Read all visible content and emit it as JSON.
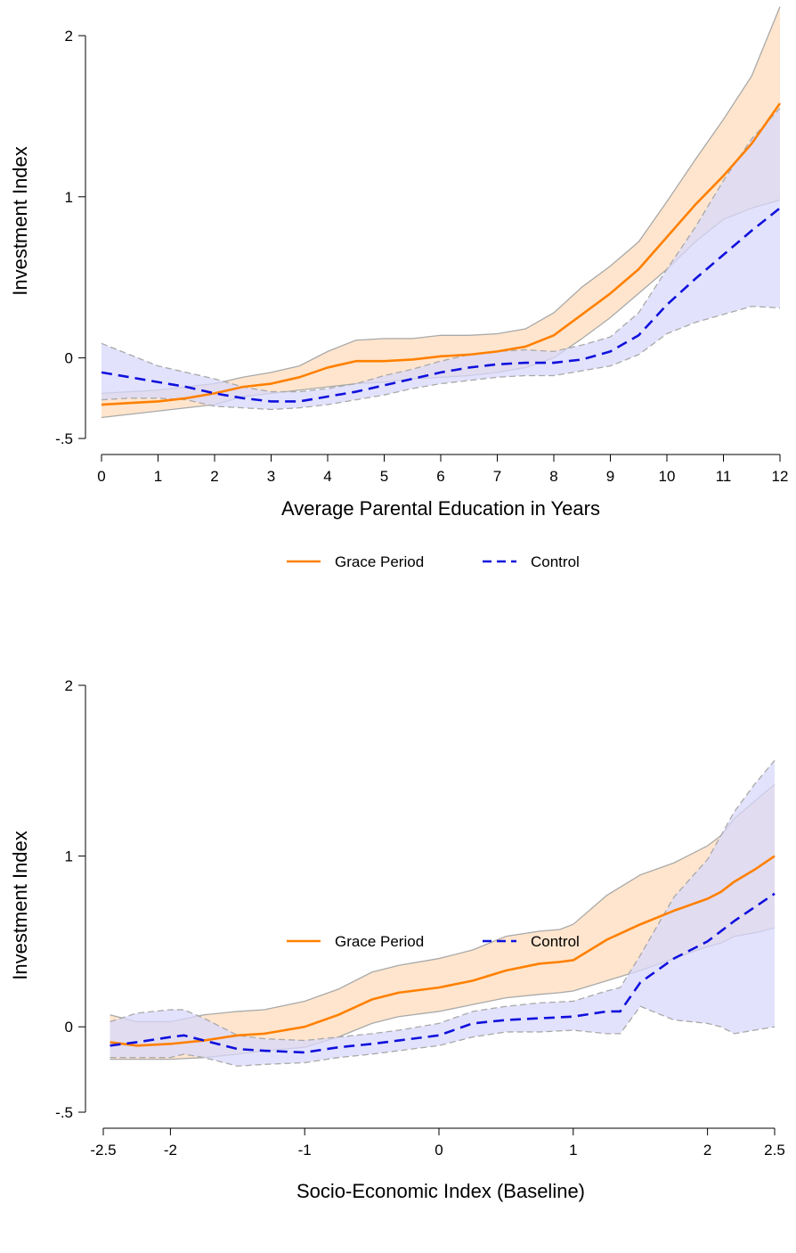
{
  "colors": {
    "grace": "#ff8000",
    "control": "#1010dd",
    "grace_band": "#ffdcbc",
    "control_band": "#d8d8fb",
    "band_edge": "#a9a9a9",
    "axis": "#000000"
  },
  "legend": {
    "grace_label": "Grace Period",
    "control_label": "Control"
  },
  "chart_data": [
    {
      "type": "line",
      "ylabel": "Investment Index",
      "xlabel": "Average Parental Education in Years",
      "xlim": [
        0,
        12
      ],
      "ylim": [
        -0.5,
        2
      ],
      "xticks": [
        0,
        1,
        2,
        3,
        4,
        5,
        6,
        7,
        8,
        9,
        10,
        11,
        12
      ],
      "xtick_labels": [
        "0",
        "1",
        "2",
        "3",
        "4",
        "5",
        "6",
        "7",
        "8",
        "9",
        "10",
        "11",
        "12"
      ],
      "yticks": [
        -0.5,
        0,
        1,
        2
      ],
      "ytick_labels": [
        "-.5",
        "0",
        "1",
        "2"
      ],
      "legend_position": "bottom",
      "series": [
        {
          "name": "Grace Period",
          "style": "solid",
          "x": [
            0,
            0.5,
            1,
            1.5,
            2,
            2.5,
            3,
            3.5,
            4,
            4.5,
            5,
            5.5,
            6,
            6.5,
            7,
            7.5,
            8,
            8.5,
            9,
            9.5,
            10,
            10.5,
            11,
            11.5,
            12
          ],
          "y": [
            -0.29,
            -0.28,
            -0.27,
            -0.25,
            -0.22,
            -0.18,
            -0.16,
            -0.12,
            -0.06,
            -0.02,
            -0.02,
            -0.01,
            0.01,
            0.02,
            0.04,
            0.07,
            0.14,
            0.27,
            0.4,
            0.55,
            0.75,
            0.95,
            1.13,
            1.33,
            1.58
          ],
          "lower": [
            -0.37,
            -0.35,
            -0.33,
            -0.31,
            -0.29,
            -0.24,
            -0.22,
            -0.2,
            -0.18,
            -0.16,
            -0.15,
            -0.13,
            -0.12,
            -0.11,
            -0.09,
            -0.06,
            0.0,
            0.12,
            0.25,
            0.4,
            0.55,
            0.72,
            0.86,
            0.93,
            0.98
          ],
          "upper": [
            -0.22,
            -0.21,
            -0.2,
            -0.18,
            -0.16,
            -0.12,
            -0.09,
            -0.05,
            0.04,
            0.11,
            0.12,
            0.12,
            0.14,
            0.14,
            0.15,
            0.18,
            0.28,
            0.44,
            0.57,
            0.72,
            0.97,
            1.23,
            1.48,
            1.75,
            2.18
          ]
        },
        {
          "name": "Control",
          "style": "dashed",
          "x": [
            0,
            0.5,
            1,
            1.5,
            2,
            2.5,
            3,
            3.5,
            4,
            4.5,
            5,
            5.5,
            6,
            6.5,
            7,
            7.5,
            8,
            8.5,
            9,
            9.5,
            10,
            10.5,
            11,
            11.5,
            12
          ],
          "y": [
            -0.09,
            -0.12,
            -0.15,
            -0.18,
            -0.22,
            -0.25,
            -0.27,
            -0.27,
            -0.24,
            -0.21,
            -0.17,
            -0.13,
            -0.09,
            -0.06,
            -0.04,
            -0.03,
            -0.03,
            -0.01,
            0.04,
            0.14,
            0.33,
            0.49,
            0.64,
            0.79,
            0.93
          ],
          "lower": [
            -0.26,
            -0.25,
            -0.25,
            -0.26,
            -0.3,
            -0.31,
            -0.32,
            -0.31,
            -0.29,
            -0.26,
            -0.23,
            -0.19,
            -0.16,
            -0.14,
            -0.12,
            -0.11,
            -0.11,
            -0.08,
            -0.05,
            0.02,
            0.15,
            0.22,
            0.27,
            0.32,
            0.31
          ],
          "upper": [
            0.09,
            0.02,
            -0.05,
            -0.09,
            -0.13,
            -0.18,
            -0.21,
            -0.21,
            -0.19,
            -0.16,
            -0.11,
            -0.07,
            -0.02,
            0.02,
            0.04,
            0.05,
            0.04,
            0.08,
            0.13,
            0.28,
            0.55,
            0.81,
            1.1,
            1.36,
            1.55
          ]
        }
      ]
    },
    {
      "type": "line",
      "ylabel": "Investment Index",
      "xlabel": "Socio-Economic Index (Baseline)",
      "xlim": [
        -2.5,
        2.5
      ],
      "ylim": [
        -0.5,
        2
      ],
      "xticks": [
        -2.5,
        -2,
        -1,
        0,
        1,
        2,
        2.5
      ],
      "xtick_labels": [
        "-2.5",
        "-2",
        "-1",
        "0",
        "1",
        "2",
        "2.5"
      ],
      "yticks": [
        -0.5,
        0,
        1,
        2
      ],
      "ytick_labels": [
        "-.5",
        "0",
        "1",
        "2"
      ],
      "legend_position": "bottom",
      "series": [
        {
          "name": "Grace Period",
          "style": "solid",
          "x": [
            -2.45,
            -2.25,
            -2.0,
            -1.75,
            -1.5,
            -1.3,
            -1.0,
            -0.75,
            -0.5,
            -0.3,
            0.0,
            0.25,
            0.5,
            0.75,
            0.9,
            1.0,
            1.25,
            1.5,
            1.75,
            2.0,
            2.1,
            2.2,
            2.35,
            2.5
          ],
          "y": [
            -0.09,
            -0.11,
            -0.1,
            -0.08,
            -0.05,
            -0.04,
            0.0,
            0.07,
            0.16,
            0.2,
            0.23,
            0.27,
            0.33,
            0.37,
            0.38,
            0.39,
            0.51,
            0.6,
            0.68,
            0.75,
            0.79,
            0.85,
            0.92,
            1.0
          ],
          "lower": [
            -0.19,
            -0.19,
            -0.19,
            -0.18,
            -0.16,
            -0.14,
            -0.12,
            -0.06,
            0.02,
            0.06,
            0.09,
            0.13,
            0.17,
            0.19,
            0.2,
            0.21,
            0.27,
            0.33,
            0.4,
            0.47,
            0.49,
            0.53,
            0.55,
            0.58
          ],
          "upper": [
            0.07,
            0.03,
            0.03,
            0.07,
            0.09,
            0.1,
            0.15,
            0.22,
            0.32,
            0.36,
            0.4,
            0.45,
            0.53,
            0.56,
            0.57,
            0.6,
            0.77,
            0.89,
            0.96,
            1.06,
            1.12,
            1.22,
            1.32,
            1.42
          ]
        },
        {
          "name": "Control",
          "style": "dashed",
          "x": [
            -2.45,
            -2.25,
            -2.0,
            -1.9,
            -1.75,
            -1.5,
            -1.3,
            -1.0,
            -0.75,
            -0.5,
            -0.3,
            0.0,
            0.25,
            0.5,
            0.75,
            1.0,
            1.25,
            1.35,
            1.5,
            1.75,
            2.0,
            2.1,
            2.2,
            2.35,
            2.5
          ],
          "y": [
            -0.11,
            -0.09,
            -0.06,
            -0.05,
            -0.08,
            -0.13,
            -0.14,
            -0.15,
            -0.12,
            -0.1,
            -0.08,
            -0.05,
            0.02,
            0.04,
            0.05,
            0.06,
            0.09,
            0.09,
            0.26,
            0.4,
            0.5,
            0.56,
            0.62,
            0.7,
            0.78
          ],
          "lower": [
            -0.18,
            -0.18,
            -0.18,
            -0.16,
            -0.18,
            -0.23,
            -0.22,
            -0.21,
            -0.18,
            -0.16,
            -0.14,
            -0.11,
            -0.06,
            -0.03,
            -0.03,
            -0.02,
            -0.04,
            -0.04,
            0.12,
            0.04,
            0.02,
            0.0,
            -0.04,
            -0.02,
            0.0
          ],
          "upper": [
            0.03,
            0.08,
            0.1,
            0.1,
            0.05,
            -0.05,
            -0.07,
            -0.08,
            -0.06,
            -0.04,
            -0.02,
            0.02,
            0.09,
            0.12,
            0.14,
            0.15,
            0.21,
            0.23,
            0.42,
            0.76,
            0.98,
            1.12,
            1.26,
            1.42,
            1.56
          ]
        }
      ]
    }
  ]
}
